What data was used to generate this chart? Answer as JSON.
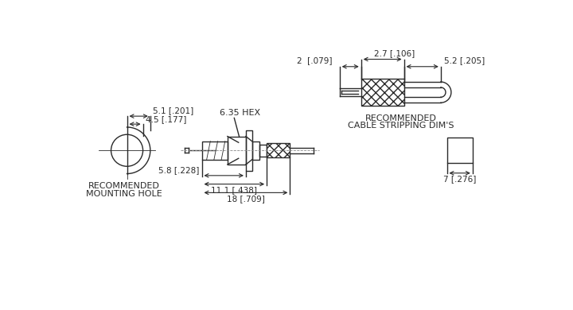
{
  "bg_color": "#ffffff",
  "line_color": "#2a2a2a",
  "dim_labels": {
    "cable_2": "2  [.079]",
    "cable_2_7": "2.7 [.106]",
    "cable_5_2": "5.2 [.205]",
    "cable_caption1": "RECOMMENDED",
    "cable_caption2": "CABLE STRIPPING DIM'S",
    "hex_label": "6.35 HEX",
    "mount_5_1": "5.1 [.201]",
    "mount_4_5": "4.5 [.177]",
    "mount_caption1": "RECOMMENDED",
    "mount_caption2": "MOUNTING HOLE",
    "dim_5_8": "5.8 [.228]",
    "dim_11_1": "11.1 [.438]",
    "dim_18": "18 [.709]",
    "dim_7": "7 [.276]"
  }
}
